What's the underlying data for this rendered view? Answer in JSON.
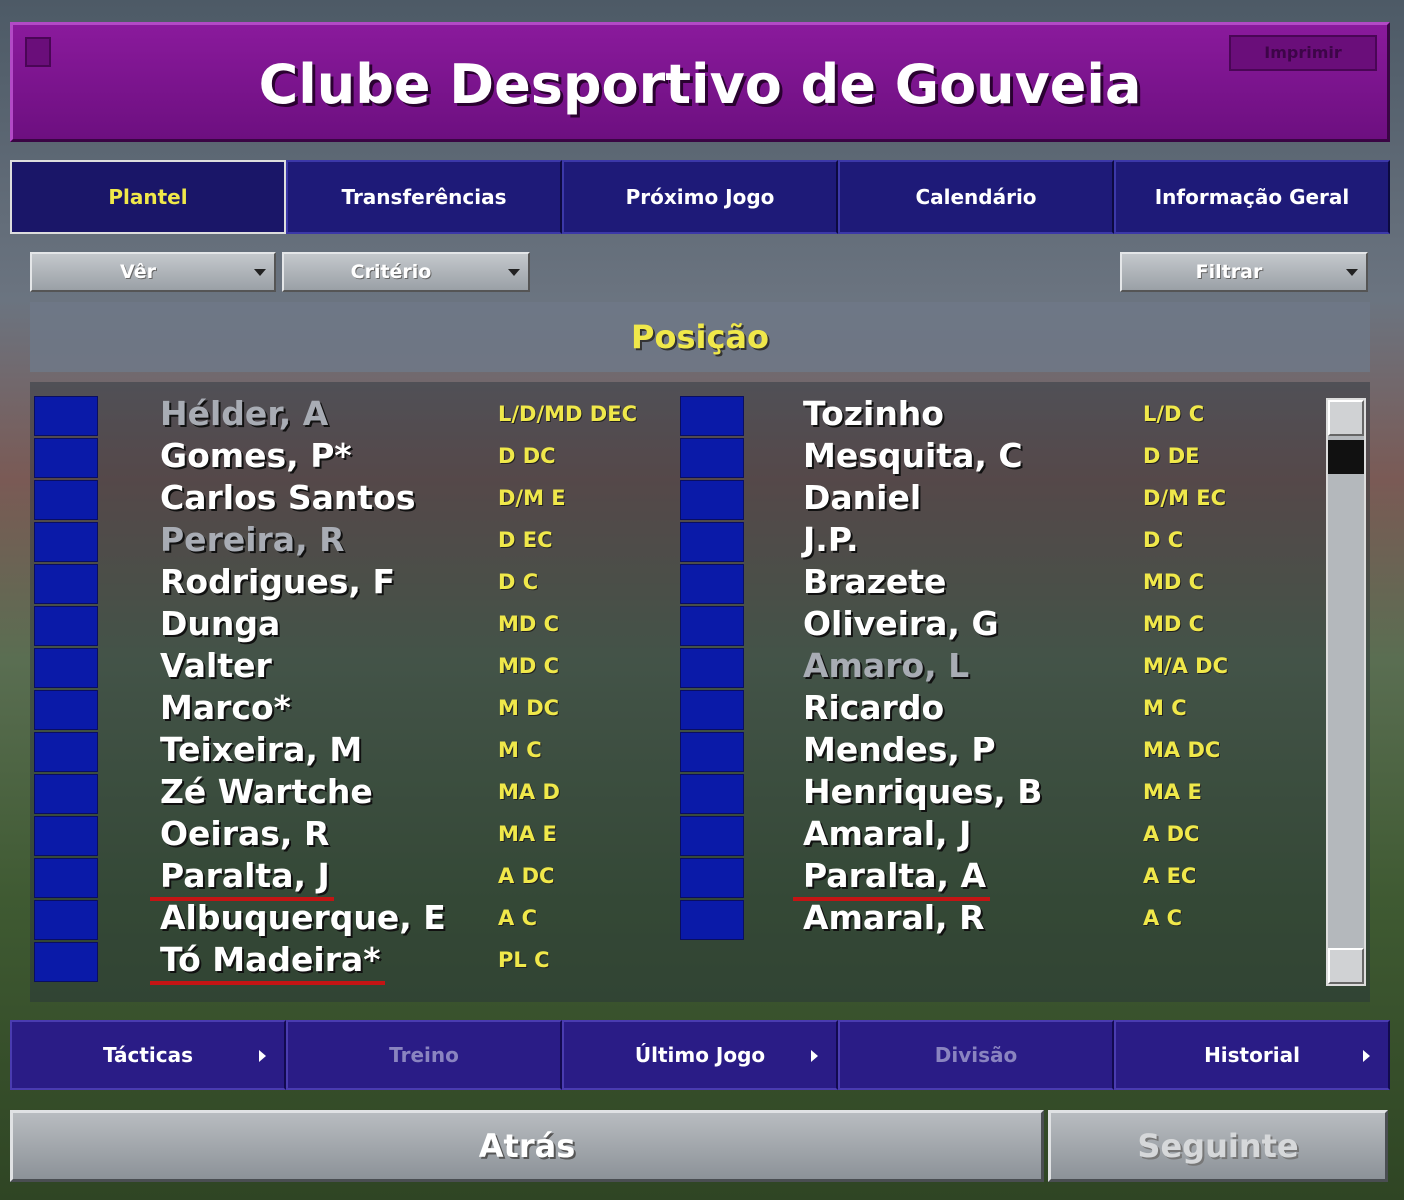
{
  "header": {
    "title": "Clube Desportivo de Gouveia",
    "print_button": "Imprimir"
  },
  "tabs": [
    {
      "label": "Plantel",
      "active": true
    },
    {
      "label": "Transferências"
    },
    {
      "label": "Próximo Jogo"
    },
    {
      "label": "Calendário"
    },
    {
      "label": "Informação Geral"
    }
  ],
  "filters": {
    "view": "Vêr",
    "criteria": "Critério",
    "filter": "Filtrar"
  },
  "list_header": "Posição",
  "players_left": [
    {
      "name": "Hélder, A",
      "position": "L/D/MD DEC",
      "dimmed": true
    },
    {
      "name": "Gomes, P*",
      "position": "D DC"
    },
    {
      "name": "Carlos Santos",
      "position": "D/M E"
    },
    {
      "name": "Pereira, R",
      "position": "D EC",
      "dimmed": true
    },
    {
      "name": "Rodrigues, F",
      "position": "D C"
    },
    {
      "name": "Dunga",
      "position": "MD C"
    },
    {
      "name": "Valter",
      "position": "MD C"
    },
    {
      "name": "Marco*",
      "position": "M DC"
    },
    {
      "name": "Teixeira, M",
      "position": "M C"
    },
    {
      "name": "Zé Wartche",
      "position": "MA D"
    },
    {
      "name": "Oeiras, R",
      "position": "MA E"
    },
    {
      "name": "Paralta, J",
      "position": "A DC",
      "underlined": true
    },
    {
      "name": "Albuquerque, E",
      "position": "A C"
    },
    {
      "name": "Tó Madeira*",
      "position": "PL C",
      "underlined": true
    }
  ],
  "players_right": [
    {
      "name": "Tozinho",
      "position": "L/D C"
    },
    {
      "name": "Mesquita, C",
      "position": "D DE"
    },
    {
      "name": "Daniel",
      "position": "D/M EC"
    },
    {
      "name": "J.P.",
      "position": "D C"
    },
    {
      "name": "Brazete",
      "position": "MD C"
    },
    {
      "name": "Oliveira, G",
      "position": "MD C"
    },
    {
      "name": "Amaro, L",
      "position": "M/A DC",
      "dimmed": true
    },
    {
      "name": "Ricardo",
      "position": "M C"
    },
    {
      "name": "Mendes, P",
      "position": "MA DC"
    },
    {
      "name": "Henriques, B",
      "position": "MA E"
    },
    {
      "name": "Amaral, J",
      "position": "A DC"
    },
    {
      "name": "Paralta, A",
      "position": "A EC",
      "underlined": true
    },
    {
      "name": "Amaral, R",
      "position": "A C"
    }
  ],
  "bottom_tabs": [
    {
      "label": "Tácticas",
      "arrow": true
    },
    {
      "label": "Treino",
      "dimmed": true
    },
    {
      "label": "Último Jogo",
      "arrow": true
    },
    {
      "label": "Divisão",
      "dimmed": true
    },
    {
      "label": "Historial",
      "arrow": true
    }
  ],
  "footer": {
    "back": "Atrás",
    "next": "Seguinte"
  }
}
